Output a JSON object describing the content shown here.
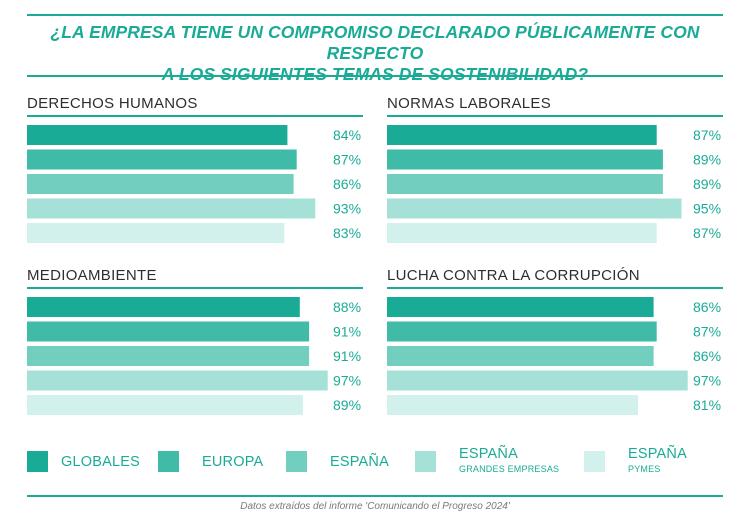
{
  "title_line1": "¿LA EMPRESA TIENE UN COMPROMISO DECLARADO PÚBLICAMENTE CON RESPECTO",
  "title_line2": "A LOS SIGUIENTES TEMAS DE SOSTENIBILIDAD?",
  "footer": "Datos extraídos del informe 'Comunicando el Progreso 2024'",
  "colors": {
    "accent": "#1aab96",
    "series": [
      "#1aab96",
      "#3fbba8",
      "#72cfc0",
      "#a6e1d8",
      "#d2f0ec"
    ],
    "value_text": "#1aab96",
    "panel_title": "#2e2e2e"
  },
  "legend": [
    {
      "label": "GLOBALES",
      "sub": ""
    },
    {
      "label": "EUROPA",
      "sub": ""
    },
    {
      "label": "ESPAÑA",
      "sub": ""
    },
    {
      "label": "ESPAÑA",
      "sub": "GRANDES EMPRESAS"
    },
    {
      "label": "ESPAÑA",
      "sub": "PYMES"
    }
  ],
  "chart_data": [
    {
      "type": "bar",
      "title": "DERECHOS HUMANOS",
      "categories": [
        "GLOBALES",
        "EUROPA",
        "ESPAÑA",
        "ESPAÑA GRANDES EMPRESAS",
        "ESPAÑA PYMES"
      ],
      "values": [
        84,
        87,
        86,
        93,
        83
      ],
      "labels": [
        "84%",
        "87%",
        "86%",
        "93%",
        "83%"
      ],
      "xlim": [
        0,
        100
      ],
      "grid": false
    },
    {
      "type": "bar",
      "title": "NORMAS LABORALES",
      "categories": [
        "GLOBALES",
        "EUROPA",
        "ESPAÑA",
        "ESPAÑA GRANDES EMPRESAS",
        "ESPAÑA PYMES"
      ],
      "values": [
        87,
        89,
        89,
        95,
        87
      ],
      "labels": [
        "87%",
        "89%",
        "89%",
        "95%",
        "87%"
      ],
      "xlim": [
        0,
        100
      ],
      "grid": false
    },
    {
      "type": "bar",
      "title": "MEDIOAMBIENTE",
      "categories": [
        "GLOBALES",
        "EUROPA",
        "ESPAÑA",
        "ESPAÑA GRANDES EMPRESAS",
        "ESPAÑA PYMES"
      ],
      "values": [
        88,
        91,
        91,
        97,
        89
      ],
      "labels": [
        "88%",
        "91%",
        "91%",
        "97%",
        "89%"
      ],
      "xlim": [
        0,
        100
      ],
      "grid": false
    },
    {
      "type": "bar",
      "title": "LUCHA CONTRA LA CORRUPCIÓN",
      "categories": [
        "GLOBALES",
        "EUROPA",
        "ESPAÑA",
        "ESPAÑA GRANDES EMPRESAS",
        "ESPAÑA PYMES"
      ],
      "values": [
        86,
        87,
        86,
        97,
        81
      ],
      "labels": [
        "86%",
        "87%",
        "86%",
        "97%",
        "81%"
      ],
      "xlim": [
        0,
        100
      ],
      "grid": false
    }
  ]
}
